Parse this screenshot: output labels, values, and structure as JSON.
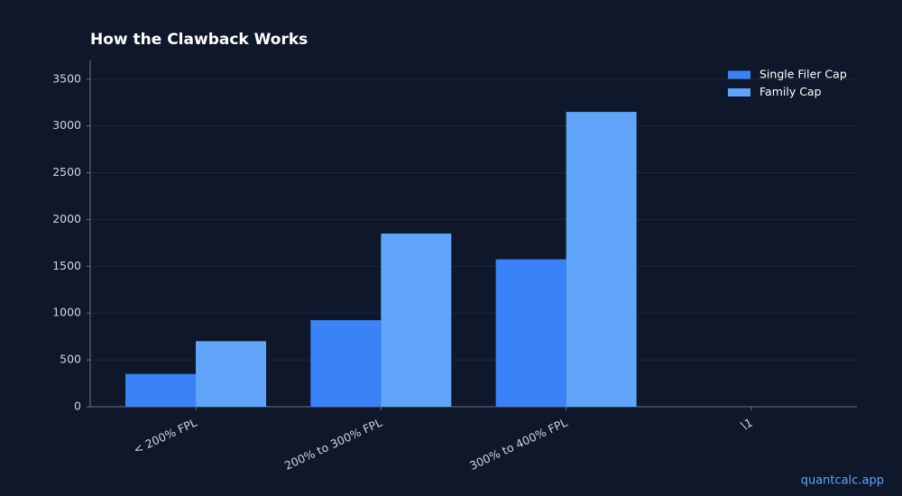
{
  "chart_data": {
    "type": "bar",
    "title": "How the Clawback Works",
    "categories": [
      "< 200% FPL",
      "200% to 300% FPL",
      "300% to 400% FPL",
      "\\1"
    ],
    "series": [
      {
        "name": "Single Filer Cap",
        "color": "#3b82f6",
        "values": [
          350,
          925,
          1575,
          null
        ]
      },
      {
        "name": "Family Cap",
        "color": "#60a5fa",
        "values": [
          700,
          1850,
          3150,
          null
        ]
      }
    ],
    "ylim": [
      0,
      3700
    ],
    "yticks": [
      0,
      500,
      1000,
      1500,
      2000,
      2500,
      3000,
      3500
    ],
    "grid": true,
    "legend": "upper-right"
  },
  "footer": "quantcalc.app"
}
